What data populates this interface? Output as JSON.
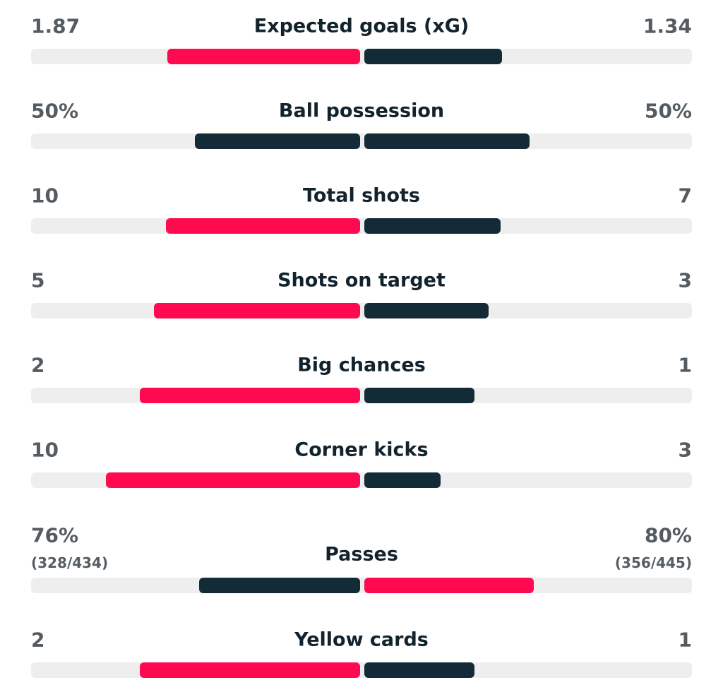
{
  "colors": {
    "higher": "#ff0a50",
    "other": "#132b37"
  },
  "stats": [
    {
      "label": "Expected goals (xG)",
      "home": 1.87,
      "away": 1.34
    },
    {
      "label": "Ball possession",
      "home": {
        "value": 50,
        "label": "50%"
      },
      "away": {
        "value": 50,
        "label": "50%"
      }
    },
    {
      "label": "Total shots",
      "home": 10,
      "away": 7
    },
    {
      "label": "Shots on target",
      "home": 5,
      "away": 3
    },
    {
      "label": "Big chances",
      "home": 2,
      "away": 1
    },
    {
      "label": "Corner kicks",
      "home": 10,
      "away": 3
    },
    {
      "label": "Passes",
      "home": {
        "value": 76,
        "label": "76%"
      },
      "away": {
        "value": 80,
        "label": "80%"
      },
      "home_sub": "(328/434)",
      "away_sub": "(356/445)"
    },
    {
      "label": "Yellow cards",
      "home": 2,
      "away": 1
    }
  ]
}
